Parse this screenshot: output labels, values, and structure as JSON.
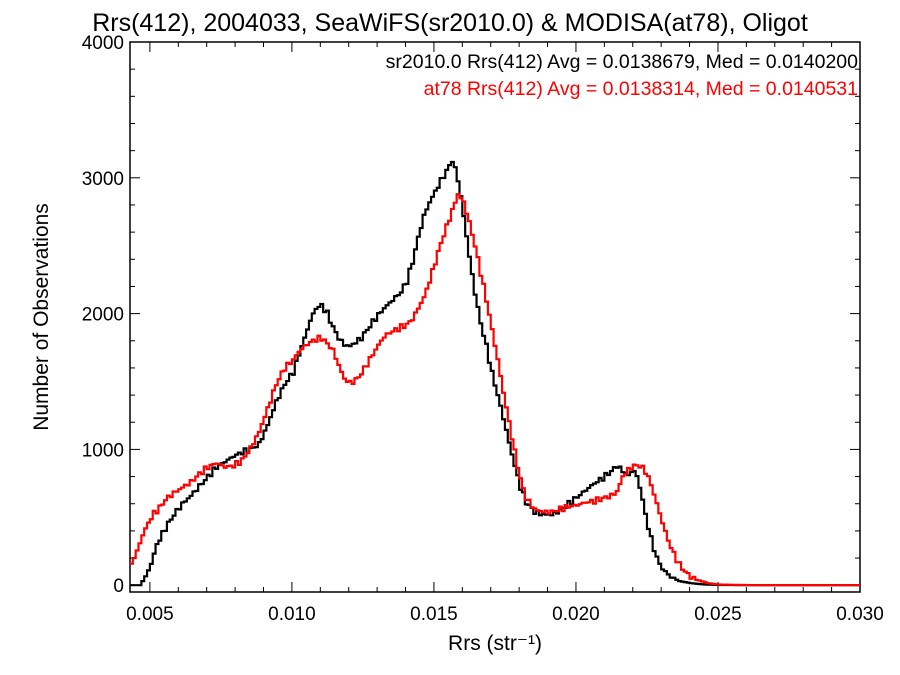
{
  "chart_data": {
    "type": "line",
    "step": true,
    "title": "Rrs(412), 2004033, SeaWiFS(sr2010.0) & MODISA(at78), Oligot",
    "xlabel": "Rrs (str⁻¹)",
    "ylabel": "Number of Observations",
    "xlim": [
      0.0043,
      0.03
    ],
    "ylim": [
      -50,
      4000
    ],
    "x_ticks": [
      "0.005",
      "0.010",
      "0.015",
      "0.020",
      "0.025",
      "0.030"
    ],
    "y_ticks": [
      "0",
      "1000",
      "2000",
      "3000",
      "4000"
    ],
    "grid": false,
    "legend_placement": "top-right",
    "legend": [
      "sr2010.0 Rrs(412) Avg = 0.0138679, Med = 0.0140200",
      "at78 Rrs(412) Avg = 0.0138314, Med = 0.0140531"
    ],
    "series": [
      {
        "color": "#000000",
        "points": [
          [
            0.0043,
            0
          ],
          [
            0.0046,
            0
          ],
          [
            0.0048,
            60
          ],
          [
            0.005,
            160
          ],
          [
            0.0052,
            300
          ],
          [
            0.0055,
            420
          ],
          [
            0.0058,
            520
          ],
          [
            0.0061,
            600
          ],
          [
            0.0064,
            660
          ],
          [
            0.0067,
            730
          ],
          [
            0.007,
            800
          ],
          [
            0.0073,
            870
          ],
          [
            0.0076,
            910
          ],
          [
            0.0079,
            950
          ],
          [
            0.0082,
            980
          ],
          [
            0.0085,
            1000
          ],
          [
            0.0088,
            1040
          ],
          [
            0.0091,
            1180
          ],
          [
            0.0094,
            1350
          ],
          [
            0.0097,
            1480
          ],
          [
            0.01,
            1570
          ],
          [
            0.0102,
            1700
          ],
          [
            0.0104,
            1820
          ],
          [
            0.0106,
            1950
          ],
          [
            0.0108,
            2040
          ],
          [
            0.011,
            2060
          ],
          [
            0.0112,
            2000
          ],
          [
            0.0114,
            1900
          ],
          [
            0.0116,
            1820
          ],
          [
            0.0118,
            1770
          ],
          [
            0.012,
            1760
          ],
          [
            0.0122,
            1790
          ],
          [
            0.0124,
            1820
          ],
          [
            0.0126,
            1880
          ],
          [
            0.0128,
            1940
          ],
          [
            0.013,
            1990
          ],
          [
            0.0132,
            2040
          ],
          [
            0.0134,
            2080
          ],
          [
            0.0136,
            2120
          ],
          [
            0.0138,
            2160
          ],
          [
            0.014,
            2240
          ],
          [
            0.0142,
            2380
          ],
          [
            0.0144,
            2560
          ],
          [
            0.0146,
            2720
          ],
          [
            0.0148,
            2820
          ],
          [
            0.015,
            2900
          ],
          [
            0.0152,
            2980
          ],
          [
            0.0154,
            3050
          ],
          [
            0.0156,
            3130
          ],
          [
            0.0158,
            2990
          ],
          [
            0.016,
            2720
          ],
          [
            0.0162,
            2420
          ],
          [
            0.0164,
            2150
          ],
          [
            0.0166,
            1930
          ],
          [
            0.0168,
            1760
          ],
          [
            0.017,
            1560
          ],
          [
            0.0172,
            1400
          ],
          [
            0.0174,
            1230
          ],
          [
            0.0176,
            1050
          ],
          [
            0.0178,
            880
          ],
          [
            0.018,
            720
          ],
          [
            0.0182,
            610
          ],
          [
            0.0185,
            540
          ],
          [
            0.0188,
            520
          ],
          [
            0.0191,
            520
          ],
          [
            0.0194,
            550
          ],
          [
            0.0197,
            600
          ],
          [
            0.02,
            650
          ],
          [
            0.0203,
            700
          ],
          [
            0.0206,
            750
          ],
          [
            0.0209,
            790
          ],
          [
            0.0212,
            840
          ],
          [
            0.0214,
            880
          ],
          [
            0.0216,
            840
          ],
          [
            0.0218,
            810
          ],
          [
            0.022,
            850
          ],
          [
            0.0222,
            730
          ],
          [
            0.0224,
            520
          ],
          [
            0.0226,
            340
          ],
          [
            0.0228,
            200
          ],
          [
            0.023,
            120
          ],
          [
            0.0233,
            60
          ],
          [
            0.0236,
            30
          ],
          [
            0.024,
            15
          ],
          [
            0.0245,
            5
          ],
          [
            0.025,
            2
          ],
          [
            0.026,
            0
          ],
          [
            0.03,
            0
          ]
        ]
      },
      {
        "color": "#ff0000",
        "points": [
          [
            0.0043,
            160
          ],
          [
            0.0045,
            250
          ],
          [
            0.0047,
            370
          ],
          [
            0.0049,
            460
          ],
          [
            0.0051,
            530
          ],
          [
            0.0053,
            570
          ],
          [
            0.0055,
            630
          ],
          [
            0.0058,
            680
          ],
          [
            0.0061,
            720
          ],
          [
            0.0064,
            760
          ],
          [
            0.0067,
            820
          ],
          [
            0.007,
            870
          ],
          [
            0.0073,
            900
          ],
          [
            0.0076,
            870
          ],
          [
            0.0079,
            880
          ],
          [
            0.0082,
            920
          ],
          [
            0.0085,
            1010
          ],
          [
            0.0088,
            1130
          ],
          [
            0.0091,
            1300
          ],
          [
            0.0094,
            1480
          ],
          [
            0.0097,
            1600
          ],
          [
            0.01,
            1660
          ],
          [
            0.0102,
            1720
          ],
          [
            0.0104,
            1760
          ],
          [
            0.0106,
            1790
          ],
          [
            0.0108,
            1810
          ],
          [
            0.011,
            1820
          ],
          [
            0.0112,
            1780
          ],
          [
            0.0114,
            1730
          ],
          [
            0.0116,
            1620
          ],
          [
            0.0118,
            1520
          ],
          [
            0.012,
            1490
          ],
          [
            0.0122,
            1510
          ],
          [
            0.0124,
            1560
          ],
          [
            0.0126,
            1630
          ],
          [
            0.0128,
            1700
          ],
          [
            0.013,
            1770
          ],
          [
            0.0132,
            1830
          ],
          [
            0.0134,
            1860
          ],
          [
            0.0136,
            1880
          ],
          [
            0.0138,
            1900
          ],
          [
            0.014,
            1920
          ],
          [
            0.0142,
            1960
          ],
          [
            0.0144,
            2040
          ],
          [
            0.0146,
            2120
          ],
          [
            0.0148,
            2240
          ],
          [
            0.015,
            2380
          ],
          [
            0.0152,
            2520
          ],
          [
            0.0154,
            2640
          ],
          [
            0.0156,
            2760
          ],
          [
            0.0158,
            2880
          ],
          [
            0.016,
            2820
          ],
          [
            0.0162,
            2670
          ],
          [
            0.0164,
            2500
          ],
          [
            0.0166,
            2300
          ],
          [
            0.0168,
            2100
          ],
          [
            0.017,
            1880
          ],
          [
            0.0172,
            1660
          ],
          [
            0.0174,
            1420
          ],
          [
            0.0176,
            1200
          ],
          [
            0.0178,
            980
          ],
          [
            0.018,
            780
          ],
          [
            0.0182,
            640
          ],
          [
            0.0185,
            560
          ],
          [
            0.0188,
            540
          ],
          [
            0.0191,
            540
          ],
          [
            0.0194,
            560
          ],
          [
            0.0197,
            580
          ],
          [
            0.02,
            590
          ],
          [
            0.0203,
            610
          ],
          [
            0.0206,
            620
          ],
          [
            0.0209,
            640
          ],
          [
            0.0212,
            660
          ],
          [
            0.0214,
            690
          ],
          [
            0.0216,
            800
          ],
          [
            0.0218,
            850
          ],
          [
            0.022,
            880
          ],
          [
            0.0222,
            880
          ],
          [
            0.0224,
            840
          ],
          [
            0.0226,
            740
          ],
          [
            0.0228,
            600
          ],
          [
            0.023,
            460
          ],
          [
            0.0232,
            330
          ],
          [
            0.0234,
            230
          ],
          [
            0.0236,
            150
          ],
          [
            0.0238,
            100
          ],
          [
            0.024,
            60
          ],
          [
            0.0243,
            35
          ],
          [
            0.0246,
            15
          ],
          [
            0.025,
            5
          ],
          [
            0.026,
            1
          ],
          [
            0.03,
            0
          ]
        ]
      }
    ]
  }
}
